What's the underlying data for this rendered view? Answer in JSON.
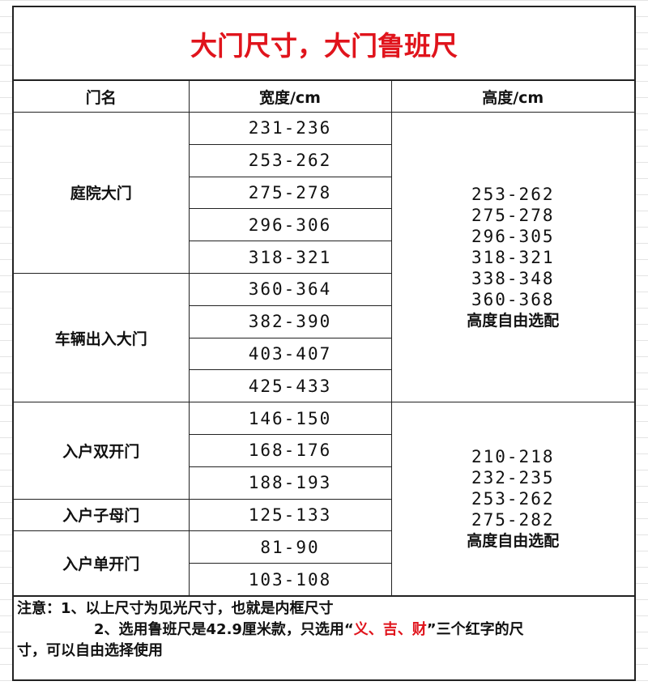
{
  "title": "大门尺寸，大门鲁班尺",
  "headers": [
    "门名",
    "宽度/cm",
    "高度/cm"
  ],
  "groups": [
    {
      "name": "庭院大门",
      "widths": [
        "231-236",
        "253-262",
        "275-278",
        "296-306",
        "318-321"
      ]
    },
    {
      "name": "车辆出入大门",
      "widths": [
        "360-364",
        "382-390",
        "403-407",
        "425-433"
      ]
    },
    {
      "name": "入户双开门",
      "widths": [
        "146-150",
        "168-176",
        "188-193"
      ]
    },
    {
      "name": "入户子母门",
      "widths": [
        "125-133"
      ]
    },
    {
      "name": "入户单开门",
      "widths": [
        "81-90",
        "103-108"
      ]
    }
  ],
  "heights": [
    {
      "span_groups": 2,
      "values": [
        "253-262",
        "275-278",
        "296-305",
        "318-321",
        "338-348",
        "360-368"
      ],
      "note": "高度自由选配"
    },
    {
      "span_groups": 3,
      "values": [
        "210-218",
        "232-235",
        "253-262",
        "275-282"
      ],
      "note": "高度自由选配"
    }
  ],
  "notes": {
    "line1": "注意：1、以上尺寸为见光尺寸，也就是内框尺寸",
    "line2_a": "2、选用鲁班尺是42.9厘米款，只选用“",
    "line2_red": "义、吉、财",
    "line2_b": "”三个红字的尺",
    "line3": "寸，可以自由选择使用"
  },
  "colors": {
    "title": "#e0141c",
    "highlight": "#e0141c"
  }
}
